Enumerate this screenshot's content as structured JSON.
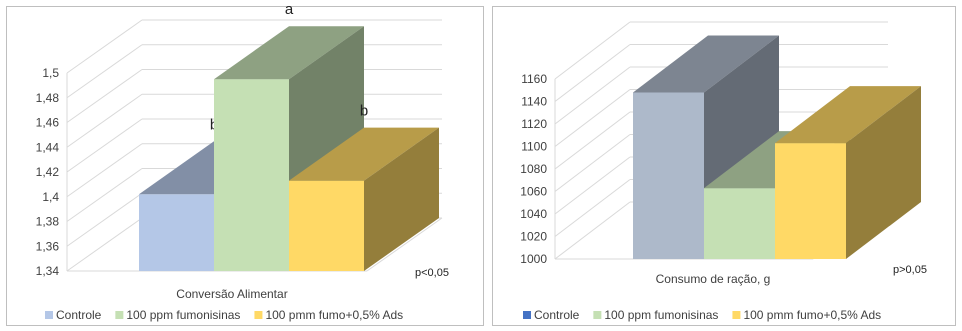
{
  "chart_data": [
    {
      "type": "bar",
      "three_d": true,
      "categories": [
        "Conversão Alimentar"
      ],
      "xlabel": "Conversão Alimentar",
      "ylim": [
        1.34,
        1.5
      ],
      "yticks": [
        "1,34",
        "1,36",
        "1,38",
        "1,4",
        "1,42",
        "1,44",
        "1,46",
        "1,48",
        "1,5"
      ],
      "series": [
        {
          "name": "Controle",
          "values": [
            1.402
          ],
          "letter": "b",
          "color": "#b4c7e7"
        },
        {
          "name": "100 ppm fumonisinas",
          "values": [
            1.495
          ],
          "letter": "a",
          "color": "#c5e0b4"
        },
        {
          "name": "100 pmm fumo+0,5% Ads",
          "values": [
            1.413
          ],
          "letter": "b",
          "color": "#ffd966"
        }
      ],
      "note": "p<0,05",
      "legend_position": "bottom",
      "grid": true
    },
    {
      "type": "bar",
      "three_d": true,
      "categories": [
        "Consumo de ração, g"
      ],
      "xlabel": "Consumo de ração, g",
      "ylim": [
        1000,
        1160
      ],
      "yticks": [
        "1000",
        "1020",
        "1040",
        "1060",
        "1080",
        "1100",
        "1120",
        "1140",
        "1160"
      ],
      "series": [
        {
          "name": "Controle",
          "values": [
            1148
          ],
          "color": "#adb9ca",
          "legend_color": "#4472c4"
        },
        {
          "name": "100 ppm fumonisinas",
          "values": [
            1063
          ],
          "color": "#c5e0b4"
        },
        {
          "name": "100 pmm fumo+0,5% Ads",
          "values": [
            1103
          ],
          "color": "#ffd966"
        }
      ],
      "note": "p>0,05",
      "legend_position": "bottom",
      "grid": true
    }
  ]
}
